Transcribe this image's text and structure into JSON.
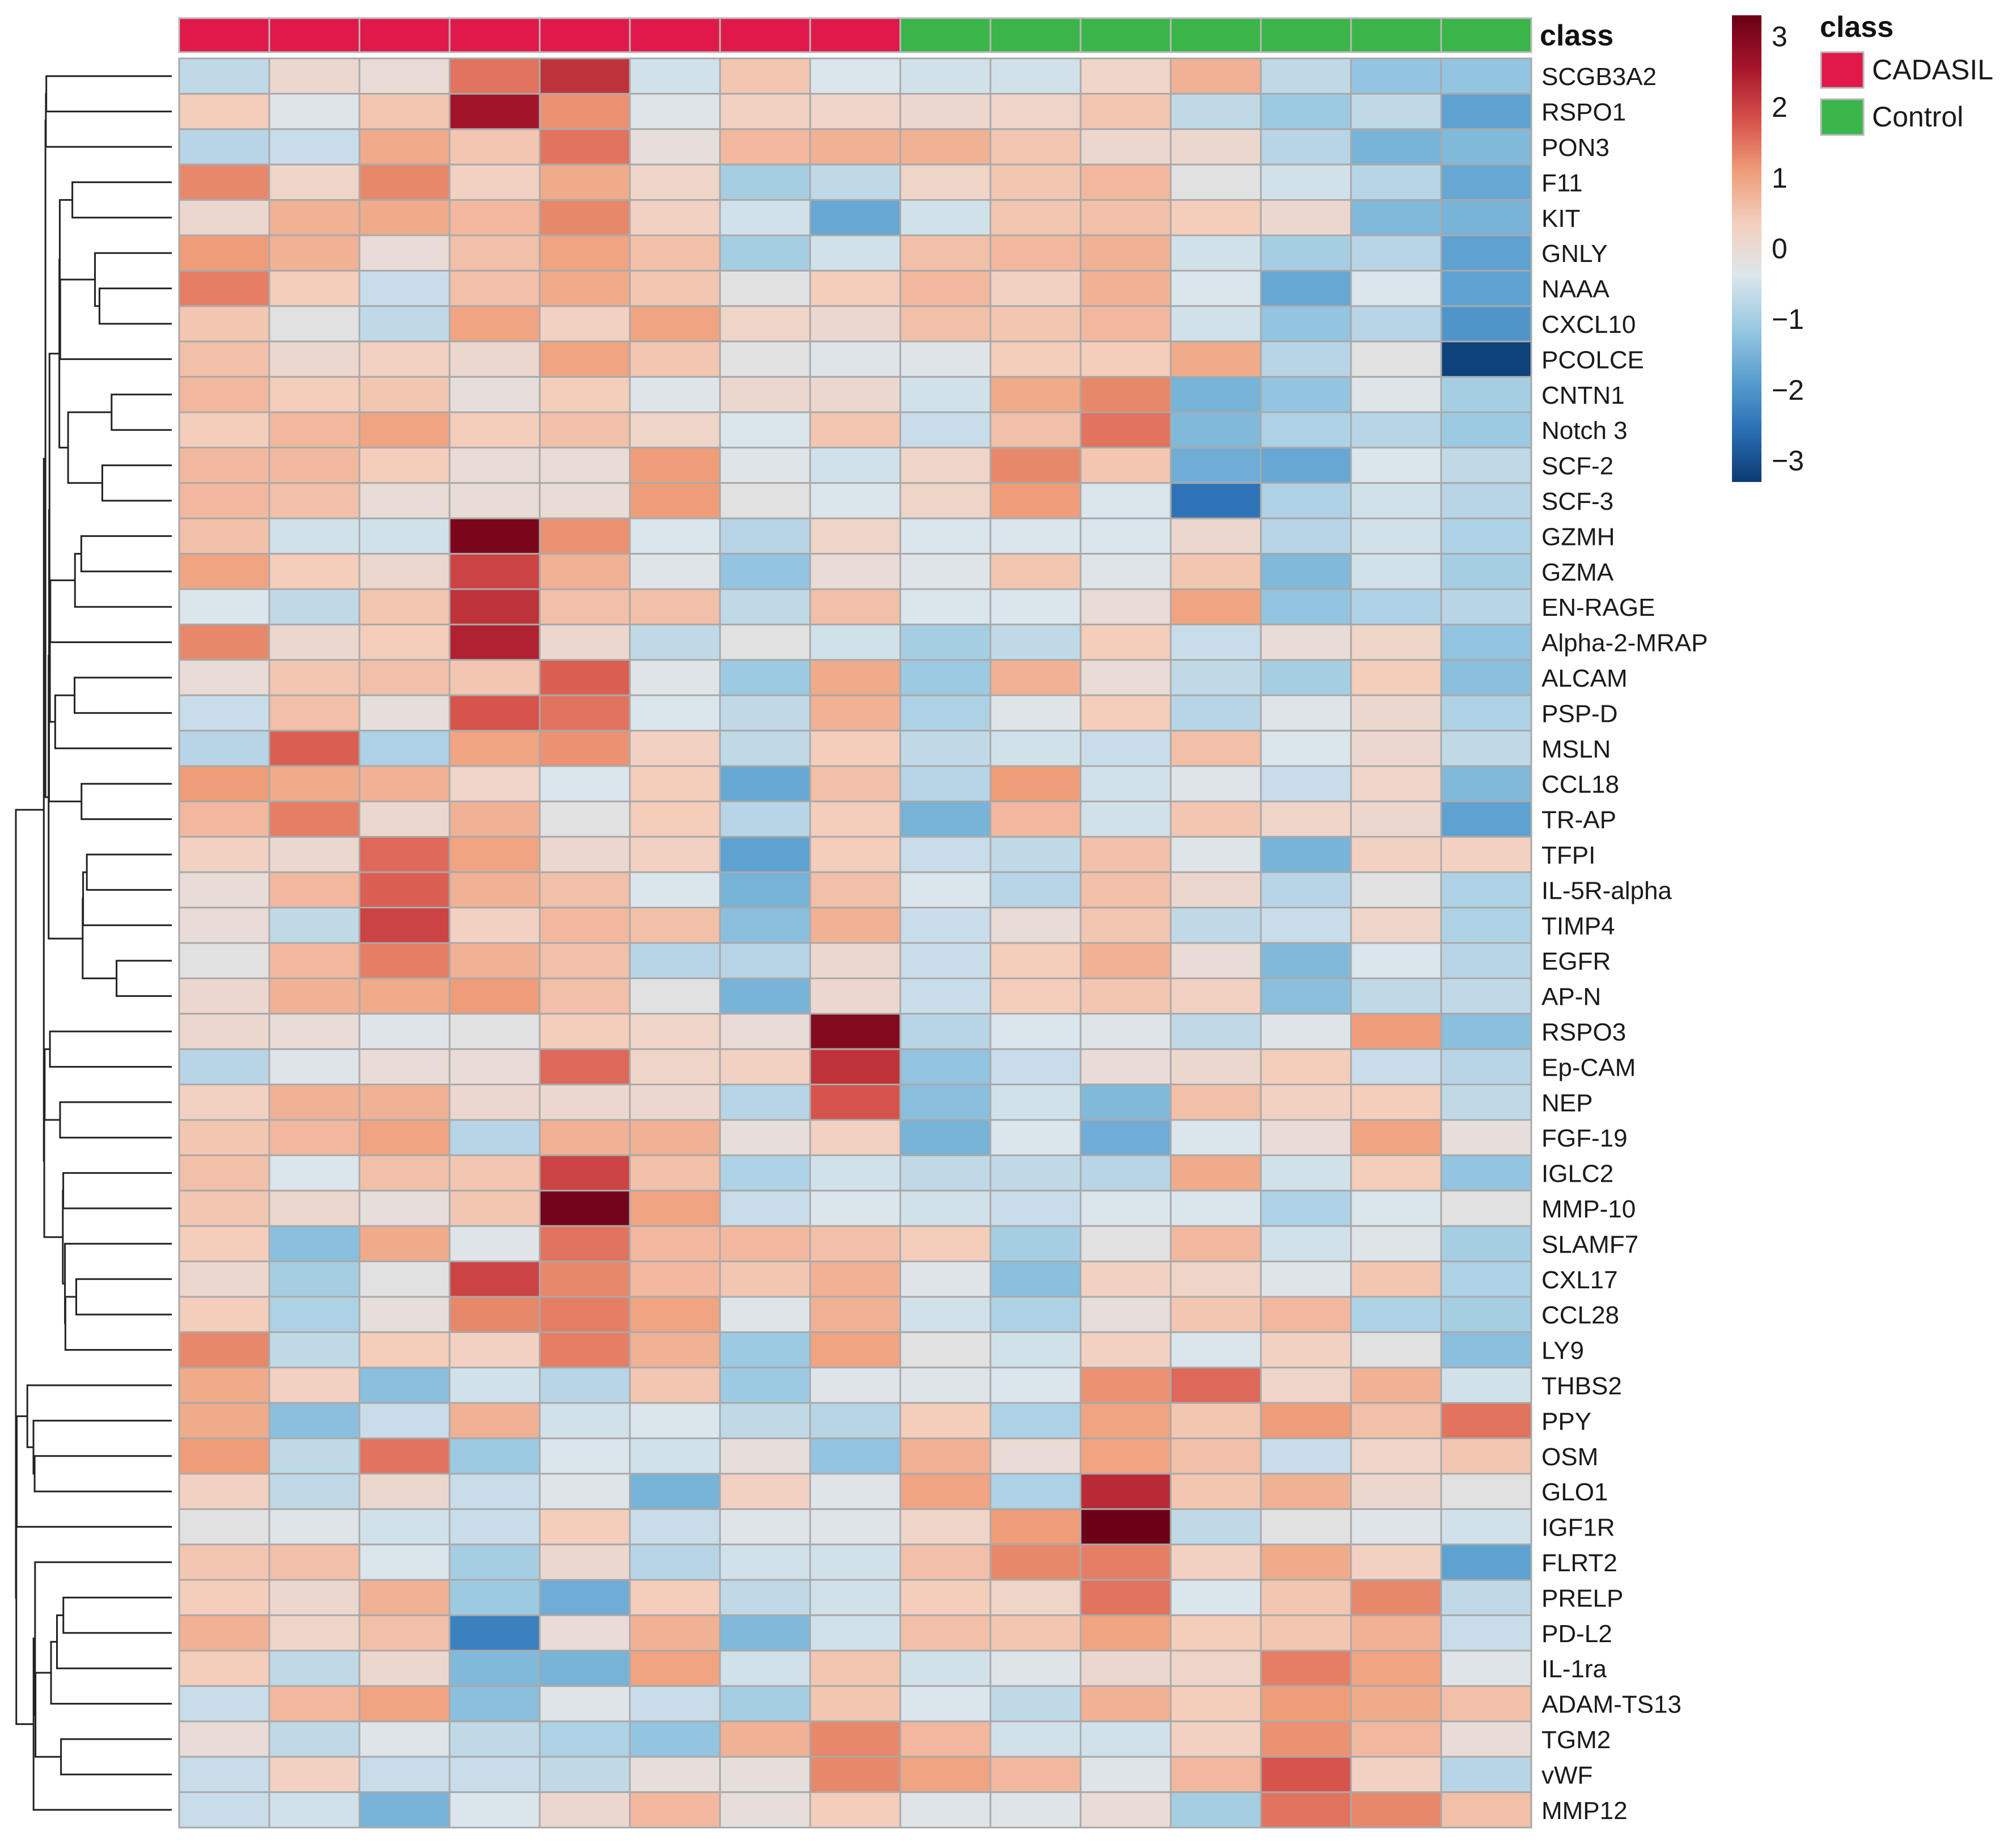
{
  "chart_data": {
    "type": "heatmap",
    "annotation_title": "class",
    "class_legend": {
      "title": "class",
      "entries": [
        {
          "name": "CADASIL",
          "color": "#e0194a"
        },
        {
          "name": "Control",
          "color": "#3ab54a"
        }
      ]
    },
    "sample_classes": [
      "CADASIL",
      "CADASIL",
      "CADASIL",
      "CADASIL",
      "CADASIL",
      "CADASIL",
      "CADASIL",
      "CADASIL",
      "Control",
      "Control",
      "Control",
      "Control",
      "Control",
      "Control",
      "Control"
    ],
    "color_scale": {
      "min": -3.3,
      "max": 3.3,
      "ticks": [
        "3",
        "2",
        "1",
        "0",
        "−1",
        "−2",
        "−3"
      ],
      "tick_values": [
        3,
        2,
        1,
        0,
        -1,
        -2,
        -3
      ],
      "colors": [
        "#0a3b72",
        "#2a6fb5",
        "#5aa0d0",
        "#9ccae2",
        "#dde6ec",
        "#f4cfbe",
        "#ef9d78",
        "#d6504a",
        "#a5152a",
        "#6b0017"
      ]
    },
    "rows": [
      "SCGB3A2",
      "RSPO1",
      "PON3",
      "F11",
      "KIT",
      "GNLY",
      "NAAA",
      "CXCL10",
      "PCOLCE",
      "CNTN1",
      "Notch 3",
      "SCF-2",
      "SCF-3",
      "GZMH",
      "GZMA",
      "EN-RAGE",
      "Alpha-2-MRAP",
      "ALCAM",
      "PSP-D",
      "MSLN",
      "CCL18",
      "TR-AP",
      "TFPI",
      "IL-5R-alpha",
      "TIMP4",
      "EGFR",
      "AP-N",
      "RSPO3",
      "Ep-CAM",
      "NEP",
      "FGF-19",
      "IGLC2",
      "MMP-10",
      "SLAMF7",
      "CXL17",
      "CCL28",
      "LY9",
      "THBS2",
      "PPY",
      "OSM",
      "GLO1",
      "IGF1R",
      "FLRT2",
      "PRELP",
      "PD-L2",
      "IL-1ra",
      "ADAM-TS13",
      "TGM2",
      "vWF",
      "MMP12"
    ],
    "values": [
      [
        -0.7,
        0.1,
        0,
        1.5,
        2.2,
        -0.5,
        0.5,
        -0.4,
        -0.5,
        -0.5,
        0.2,
        0.8,
        -0.7,
        -1.2,
        -1.2
      ],
      [
        0.4,
        -0.3,
        0.5,
        2.6,
        1.2,
        -0.3,
        0.3,
        0.2,
        0.1,
        0.2,
        0.5,
        -0.7,
        -1.1,
        -0.7,
        -1.8
      ],
      [
        -0.8,
        -0.6,
        0.9,
        0.5,
        1.5,
        -0.1,
        0.7,
        0.8,
        0.8,
        0.5,
        0.1,
        0.1,
        -0.8,
        -1.5,
        -1.4
      ],
      [
        1.3,
        0.2,
        1.3,
        0.3,
        0.9,
        0.2,
        -1.0,
        -0.7,
        0.2,
        0.5,
        0.7,
        -0.2,
        -0.5,
        -0.8,
        -1.7
      ],
      [
        0.1,
        0.8,
        0.9,
        0.7,
        1.3,
        0.3,
        -0.5,
        -1.7,
        -0.5,
        0.5,
        0.6,
        0.4,
        0.1,
        -1.4,
        -1.5
      ],
      [
        1.1,
        0.8,
        0,
        0.6,
        1.0,
        0.6,
        -1.0,
        -0.5,
        0.6,
        0.7,
        0.8,
        -0.5,
        -1.0,
        -0.8,
        -1.8
      ],
      [
        1.4,
        0.4,
        -0.6,
        0.6,
        0.9,
        0.5,
        -0.2,
        0.4,
        0.7,
        0.3,
        0.8,
        -0.4,
        -1.7,
        -0.4,
        -1.8
      ],
      [
        0.5,
        -0.2,
        -0.7,
        1.0,
        0.3,
        1.0,
        0.2,
        0.1,
        0.6,
        0.5,
        0.7,
        -0.5,
        -1.2,
        -0.8,
        -2.0
      ],
      [
        0.6,
        0.1,
        0.3,
        0.1,
        1.0,
        0.5,
        -0.2,
        -0.3,
        -0.3,
        0.4,
        0.4,
        0.9,
        -0.8,
        -0.2,
        -3.2
      ],
      [
        0.7,
        0.4,
        0.5,
        -0.1,
        0.4,
        -0.3,
        0.1,
        0.1,
        -0.5,
        0.9,
        1.3,
        -1.5,
        -1.2,
        -0.3,
        -1.0
      ],
      [
        0.4,
        0.7,
        1.0,
        0.4,
        0.6,
        0.2,
        -0.4,
        0.5,
        -0.6,
        0.6,
        1.5,
        -1.4,
        -0.9,
        -0.8,
        -1.1
      ],
      [
        0.7,
        0.7,
        0.4,
        0,
        0,
        1.1,
        -0.3,
        -0.5,
        0.2,
        1.3,
        0.5,
        -1.6,
        -1.7,
        -0.4,
        -0.7
      ],
      [
        0.7,
        0.6,
        0,
        0,
        0,
        1.1,
        -0.2,
        -0.4,
        0.2,
        1.1,
        -0.4,
        -2.5,
        -0.9,
        -0.5,
        -0.8
      ],
      [
        0.6,
        -0.5,
        -0.5,
        3.1,
        1.2,
        -0.4,
        -0.8,
        0.2,
        -0.4,
        -0.4,
        -0.4,
        0.1,
        -0.8,
        -0.5,
        -0.9
      ],
      [
        1.0,
        0.4,
        0.1,
        2.0,
        0.8,
        -0.3,
        -1.2,
        0,
        -0.3,
        0.5,
        -0.3,
        0.5,
        -1.4,
        -0.5,
        -1.0
      ],
      [
        -0.4,
        -0.7,
        0.5,
        2.2,
        0.6,
        0.6,
        -0.7,
        0.6,
        -0.4,
        -0.4,
        0,
        1.0,
        -1.2,
        -0.9,
        -0.8
      ],
      [
        1.3,
        0.1,
        0.4,
        2.4,
        0.1,
        -0.7,
        -0.2,
        -0.5,
        -1.0,
        -0.7,
        0.4,
        -0.6,
        0,
        0.2,
        -1.2
      ],
      [
        0,
        0.5,
        0.6,
        0.5,
        1.7,
        -0.3,
        -1.1,
        0.9,
        -1.1,
        0.8,
        0,
        -0.7,
        -1.0,
        0.4,
        -1.3
      ],
      [
        -0.6,
        0.6,
        -0.1,
        1.8,
        1.5,
        -0.4,
        -0.7,
        0.8,
        -0.9,
        -0.3,
        0.4,
        -0.8,
        -0.3,
        0.1,
        -0.9
      ],
      [
        -0.8,
        1.7,
        -0.9,
        1.0,
        1.2,
        0.3,
        -0.7,
        0.4,
        -0.7,
        -0.5,
        -0.6,
        0.6,
        -0.4,
        0.1,
        -0.7
      ],
      [
        1.1,
        0.9,
        0.8,
        0.2,
        -0.4,
        0.4,
        -1.7,
        0.6,
        -0.8,
        1.1,
        -0.5,
        -0.3,
        -0.6,
        0.2,
        -1.4
      ],
      [
        0.7,
        1.4,
        0.1,
        0.8,
        -0.2,
        0.4,
        -0.8,
        0.4,
        -1.5,
        0.7,
        -0.5,
        0.5,
        0.2,
        0.1,
        -1.8
      ],
      [
        0.3,
        0.1,
        1.6,
        1.0,
        0.1,
        0.3,
        -1.8,
        0.4,
        -0.6,
        -0.7,
        0.6,
        -0.3,
        -1.5,
        0.3,
        0.3
      ],
      [
        0,
        0.7,
        1.7,
        0.8,
        0.6,
        -0.4,
        -1.5,
        0.6,
        -0.4,
        -0.8,
        0.6,
        0.1,
        -0.8,
        -0.2,
        -0.9
      ],
      [
        0,
        -0.7,
        2.0,
        0.3,
        0.7,
        0.6,
        -1.3,
        0.8,
        -0.6,
        0,
        0.5,
        -0.7,
        -0.6,
        0.2,
        -0.9
      ],
      [
        -0.2,
        0.7,
        1.4,
        0.8,
        0.6,
        -0.8,
        -0.8,
        0.1,
        -0.6,
        0.4,
        0.8,
        0,
        -1.4,
        -0.4,
        -0.8
      ],
      [
        0.1,
        0.8,
        0.9,
        1.1,
        0.6,
        -0.2,
        -1.5,
        0.1,
        -0.6,
        0.4,
        0.5,
        0.3,
        -1.3,
        -0.7,
        -0.7
      ],
      [
        0.1,
        0,
        -0.3,
        -0.2,
        0.4,
        0.2,
        0,
        3.0,
        -0.8,
        -0.4,
        -0.3,
        -0.7,
        -0.3,
        1.1,
        -1.3
      ],
      [
        -0.8,
        -0.3,
        0,
        0,
        1.6,
        0.2,
        0.3,
        2.2,
        -1.2,
        -0.6,
        0,
        0.1,
        0.4,
        -0.6,
        -0.8
      ],
      [
        0.3,
        0.8,
        0.8,
        0.1,
        0.1,
        0.1,
        -0.8,
        1.8,
        -1.3,
        -0.5,
        -1.4,
        0.6,
        0.3,
        0.4,
        -0.7
      ],
      [
        0.5,
        0.7,
        1.0,
        -0.8,
        0.8,
        0.8,
        -0.1,
        0.3,
        -1.5,
        -0.4,
        -1.6,
        -0.4,
        0,
        1.0,
        -0.1
      ],
      [
        0.6,
        -0.4,
        0.6,
        0.5,
        2.0,
        0.6,
        -0.9,
        -0.5,
        -0.7,
        -0.7,
        -0.8,
        0.9,
        -0.5,
        0.4,
        -1.2
      ],
      [
        0.5,
        0.1,
        -0.1,
        0.5,
        3.2,
        1.0,
        -0.6,
        -0.4,
        -0.5,
        -0.6,
        -0.4,
        -0.4,
        -0.9,
        -0.4,
        -0.2
      ],
      [
        0.4,
        -1.3,
        0.9,
        -0.3,
        1.5,
        0.7,
        0.7,
        0.6,
        0.4,
        -1.0,
        -0.2,
        0.7,
        -0.5,
        -0.3,
        -1.0
      ],
      [
        0.1,
        -1.0,
        -0.2,
        2.0,
        1.3,
        0.7,
        0.5,
        0.8,
        -0.3,
        -1.3,
        0.3,
        0.2,
        -0.3,
        0.5,
        -0.9
      ],
      [
        0.4,
        -0.9,
        -0.1,
        1.3,
        1.4,
        1.0,
        -0.3,
        0.8,
        -0.5,
        -0.9,
        -0.1,
        0.5,
        0.7,
        -0.9,
        -1.0
      ],
      [
        1.3,
        -0.7,
        0.4,
        0.3,
        1.4,
        0.8,
        -1.1,
        1.0,
        -0.2,
        -0.5,
        0.3,
        -0.4,
        0.3,
        -0.2,
        -1.3
      ],
      [
        0.9,
        0.3,
        -1.3,
        -0.5,
        -0.8,
        0.5,
        -1.1,
        -0.3,
        -0.3,
        -0.4,
        1.2,
        1.6,
        0.2,
        0.8,
        -0.5
      ],
      [
        0.9,
        -1.3,
        -0.6,
        0.8,
        -0.5,
        -0.4,
        -0.7,
        -0.8,
        0.4,
        -0.9,
        1.0,
        0.5,
        1.1,
        0.6,
        1.5
      ],
      [
        1.1,
        -0.7,
        1.5,
        -1.1,
        -0.4,
        -0.5,
        -0.1,
        -1.2,
        0.8,
        0,
        1.0,
        0.6,
        -0.6,
        0.2,
        0.5
      ],
      [
        0.3,
        -0.7,
        0.1,
        -0.6,
        -0.3,
        -1.5,
        0.3,
        -0.3,
        1.0,
        -0.9,
        2.3,
        0.5,
        0.8,
        0.1,
        -0.2
      ],
      [
        -0.2,
        -0.3,
        -0.5,
        -0.6,
        0.4,
        -0.6,
        -0.3,
        -0.3,
        0.2,
        1.1,
        3.3,
        -0.7,
        -0.2,
        -0.3,
        -0.5
      ],
      [
        0.5,
        0.6,
        -0.4,
        -1.0,
        0.1,
        -0.8,
        -0.5,
        -0.5,
        0.6,
        1.3,
        1.4,
        0.3,
        0.9,
        0.3,
        -1.8
      ],
      [
        0.4,
        0.1,
        0.8,
        -1.1,
        -1.6,
        0.4,
        -0.7,
        -0.5,
        0.4,
        0.2,
        1.5,
        -0.4,
        0.5,
        1.3,
        -0.7
      ],
      [
        0.8,
        0.2,
        0.6,
        -2.3,
        0,
        0.8,
        -1.4,
        -0.5,
        0.6,
        0.5,
        1.0,
        0.4,
        0.5,
        0.8,
        -0.6
      ],
      [
        0.4,
        -0.7,
        0.1,
        -1.4,
        -1.5,
        1.0,
        -0.5,
        0.5,
        -0.5,
        -0.3,
        0.1,
        0.2,
        1.4,
        1.0,
        -0.3
      ],
      [
        -0.6,
        0.7,
        1.0,
        -1.3,
        -0.3,
        -0.6,
        -1.0,
        0.5,
        -0.4,
        -0.7,
        0.8,
        0.4,
        1.1,
        0.9,
        0.6
      ],
      [
        0,
        -0.7,
        -0.3,
        -0.7,
        -0.9,
        -1.2,
        0.8,
        1.3,
        0.7,
        -0.5,
        -0.5,
        0.3,
        1.2,
        0.7,
        0
      ],
      [
        -0.6,
        0.3,
        -0.6,
        -0.6,
        -0.7,
        -0.1,
        -0.1,
        1.3,
        1.0,
        0.7,
        -0.3,
        0.7,
        1.8,
        0.3,
        -0.8
      ],
      [
        -0.6,
        -0.5,
        -1.5,
        -0.4,
        0.1,
        0.7,
        -0.1,
        0.4,
        -0.3,
        -0.3,
        0,
        -1.0,
        1.5,
        1.3,
        0.6
      ]
    ]
  }
}
